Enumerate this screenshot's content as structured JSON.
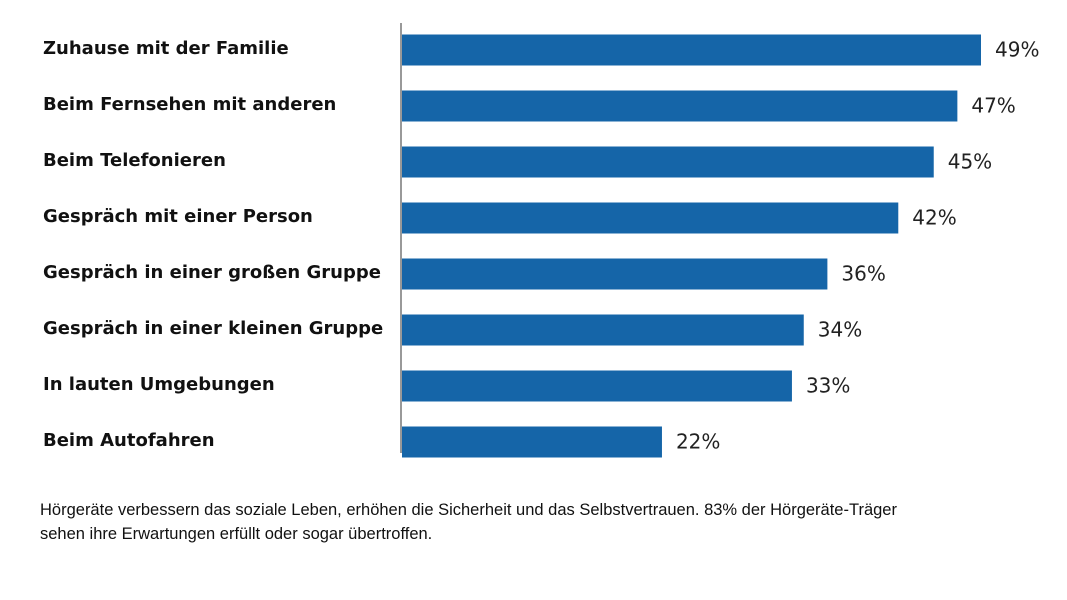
{
  "chart_data": {
    "type": "bar",
    "orientation": "horizontal",
    "categories": [
      "Zuhause mit der Familie",
      "Beim Fernsehen mit anderen",
      "Beim Telefonieren",
      "Gespräch mit einer Person",
      "Gespräch in einer großen Gruppe",
      "Gespräch in einer kleinen Gruppe",
      "In lauten Umgebungen",
      "Beim Autofahren"
    ],
    "values": [
      49,
      47,
      45,
      42,
      36,
      34,
      33,
      22
    ],
    "value_labels": [
      "49%",
      "47%",
      "45%",
      "42%",
      "36%",
      "34%",
      "33%",
      "22%"
    ],
    "xlim": [
      0,
      49
    ],
    "grid": false,
    "bar_color": "#1565A8",
    "axis_color": "#999999"
  },
  "caption": {
    "line1": "Hörgeräte verbessern das soziale Leben, erhöhen die Sicherheit und das Selbstvertrauen. 83% der Hörgeräte-Träger",
    "line2": "sehen ihre Erwartungen erfüllt oder sogar übertroffen."
  }
}
